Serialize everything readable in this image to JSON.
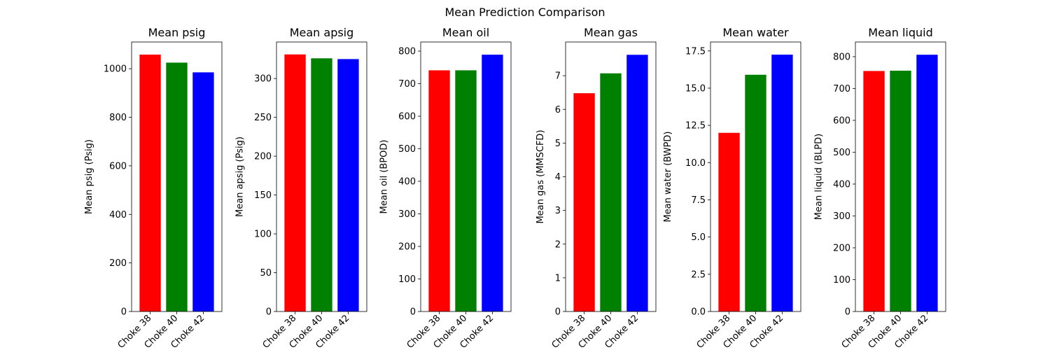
{
  "figure": {
    "suptitle": "Mean Prediction Comparison",
    "bar_colors": [
      "#ff0000",
      "#008000",
      "#0000ff"
    ]
  },
  "chart_data": [
    {
      "type": "bar",
      "title": "Mean psig",
      "ylabel": "Mean psig (Psig)",
      "categories": [
        "Choke 38",
        "Choke 40",
        "Choke 42"
      ],
      "values": [
        1058,
        1025,
        985
      ],
      "ylim": [
        0,
        1110
      ],
      "yticks": [
        0,
        200,
        400,
        600,
        800,
        1000
      ],
      "ytick_labels": [
        "0",
        "200",
        "400",
        "600",
        "800",
        "1000"
      ]
    },
    {
      "type": "bar",
      "title": "Mean apsig",
      "ylabel": "Mean apsig (Psig)",
      "categories": [
        "Choke 38",
        "Choke 40",
        "Choke 42"
      ],
      "values": [
        331,
        326,
        325
      ],
      "ylim": [
        0,
        347
      ],
      "yticks": [
        0,
        50,
        100,
        150,
        200,
        250,
        300
      ],
      "ytick_labels": [
        "0",
        "50",
        "100",
        "150",
        "200",
        "250",
        "300"
      ]
    },
    {
      "type": "bar",
      "title": "Mean oil",
      "ylabel": "Mean oil (BPOD)",
      "categories": [
        "Choke 38",
        "Choke 40",
        "Choke 42"
      ],
      "values": [
        741,
        741,
        789
      ],
      "ylim": [
        0,
        828
      ],
      "yticks": [
        0,
        100,
        200,
        300,
        400,
        500,
        600,
        700,
        800
      ],
      "ytick_labels": [
        "0",
        "100",
        "200",
        "300",
        "400",
        "500",
        "600",
        "700",
        "800"
      ]
    },
    {
      "type": "bar",
      "title": "Mean gas",
      "ylabel": "Mean gas (MMSCFD)",
      "categories": [
        "Choke 38",
        "Choke 40",
        "Choke 42"
      ],
      "values": [
        6.48,
        7.07,
        7.62
      ],
      "ylim": [
        0,
        8.0
      ],
      "yticks": [
        0,
        1,
        2,
        3,
        4,
        5,
        6,
        7
      ],
      "ytick_labels": [
        "0",
        "1",
        "2",
        "3",
        "4",
        "5",
        "6",
        "7"
      ]
    },
    {
      "type": "bar",
      "title": "Mean water",
      "ylabel": "Mean water (BWPD)",
      "categories": [
        "Choke 38",
        "Choke 40",
        "Choke 42"
      ],
      "values": [
        12.0,
        15.9,
        17.25
      ],
      "ylim": [
        0,
        18.1
      ],
      "yticks": [
        0,
        2.5,
        5.0,
        7.5,
        10.0,
        12.5,
        15.0,
        17.5
      ],
      "ytick_labels": [
        "0.0",
        "2.5",
        "5.0",
        "7.5",
        "10.0",
        "12.5",
        "15.0",
        "17.5"
      ]
    },
    {
      "type": "bar",
      "title": "Mean liquid",
      "ylabel": "Mean liquid (BLPD)",
      "categories": [
        "Choke 38",
        "Choke 40",
        "Choke 42"
      ],
      "values": [
        755,
        756,
        806
      ],
      "ylim": [
        0,
        846
      ],
      "yticks": [
        0,
        100,
        200,
        300,
        400,
        500,
        600,
        700,
        800
      ],
      "ytick_labels": [
        "0",
        "100",
        "200",
        "300",
        "400",
        "500",
        "600",
        "700",
        "800"
      ]
    }
  ]
}
